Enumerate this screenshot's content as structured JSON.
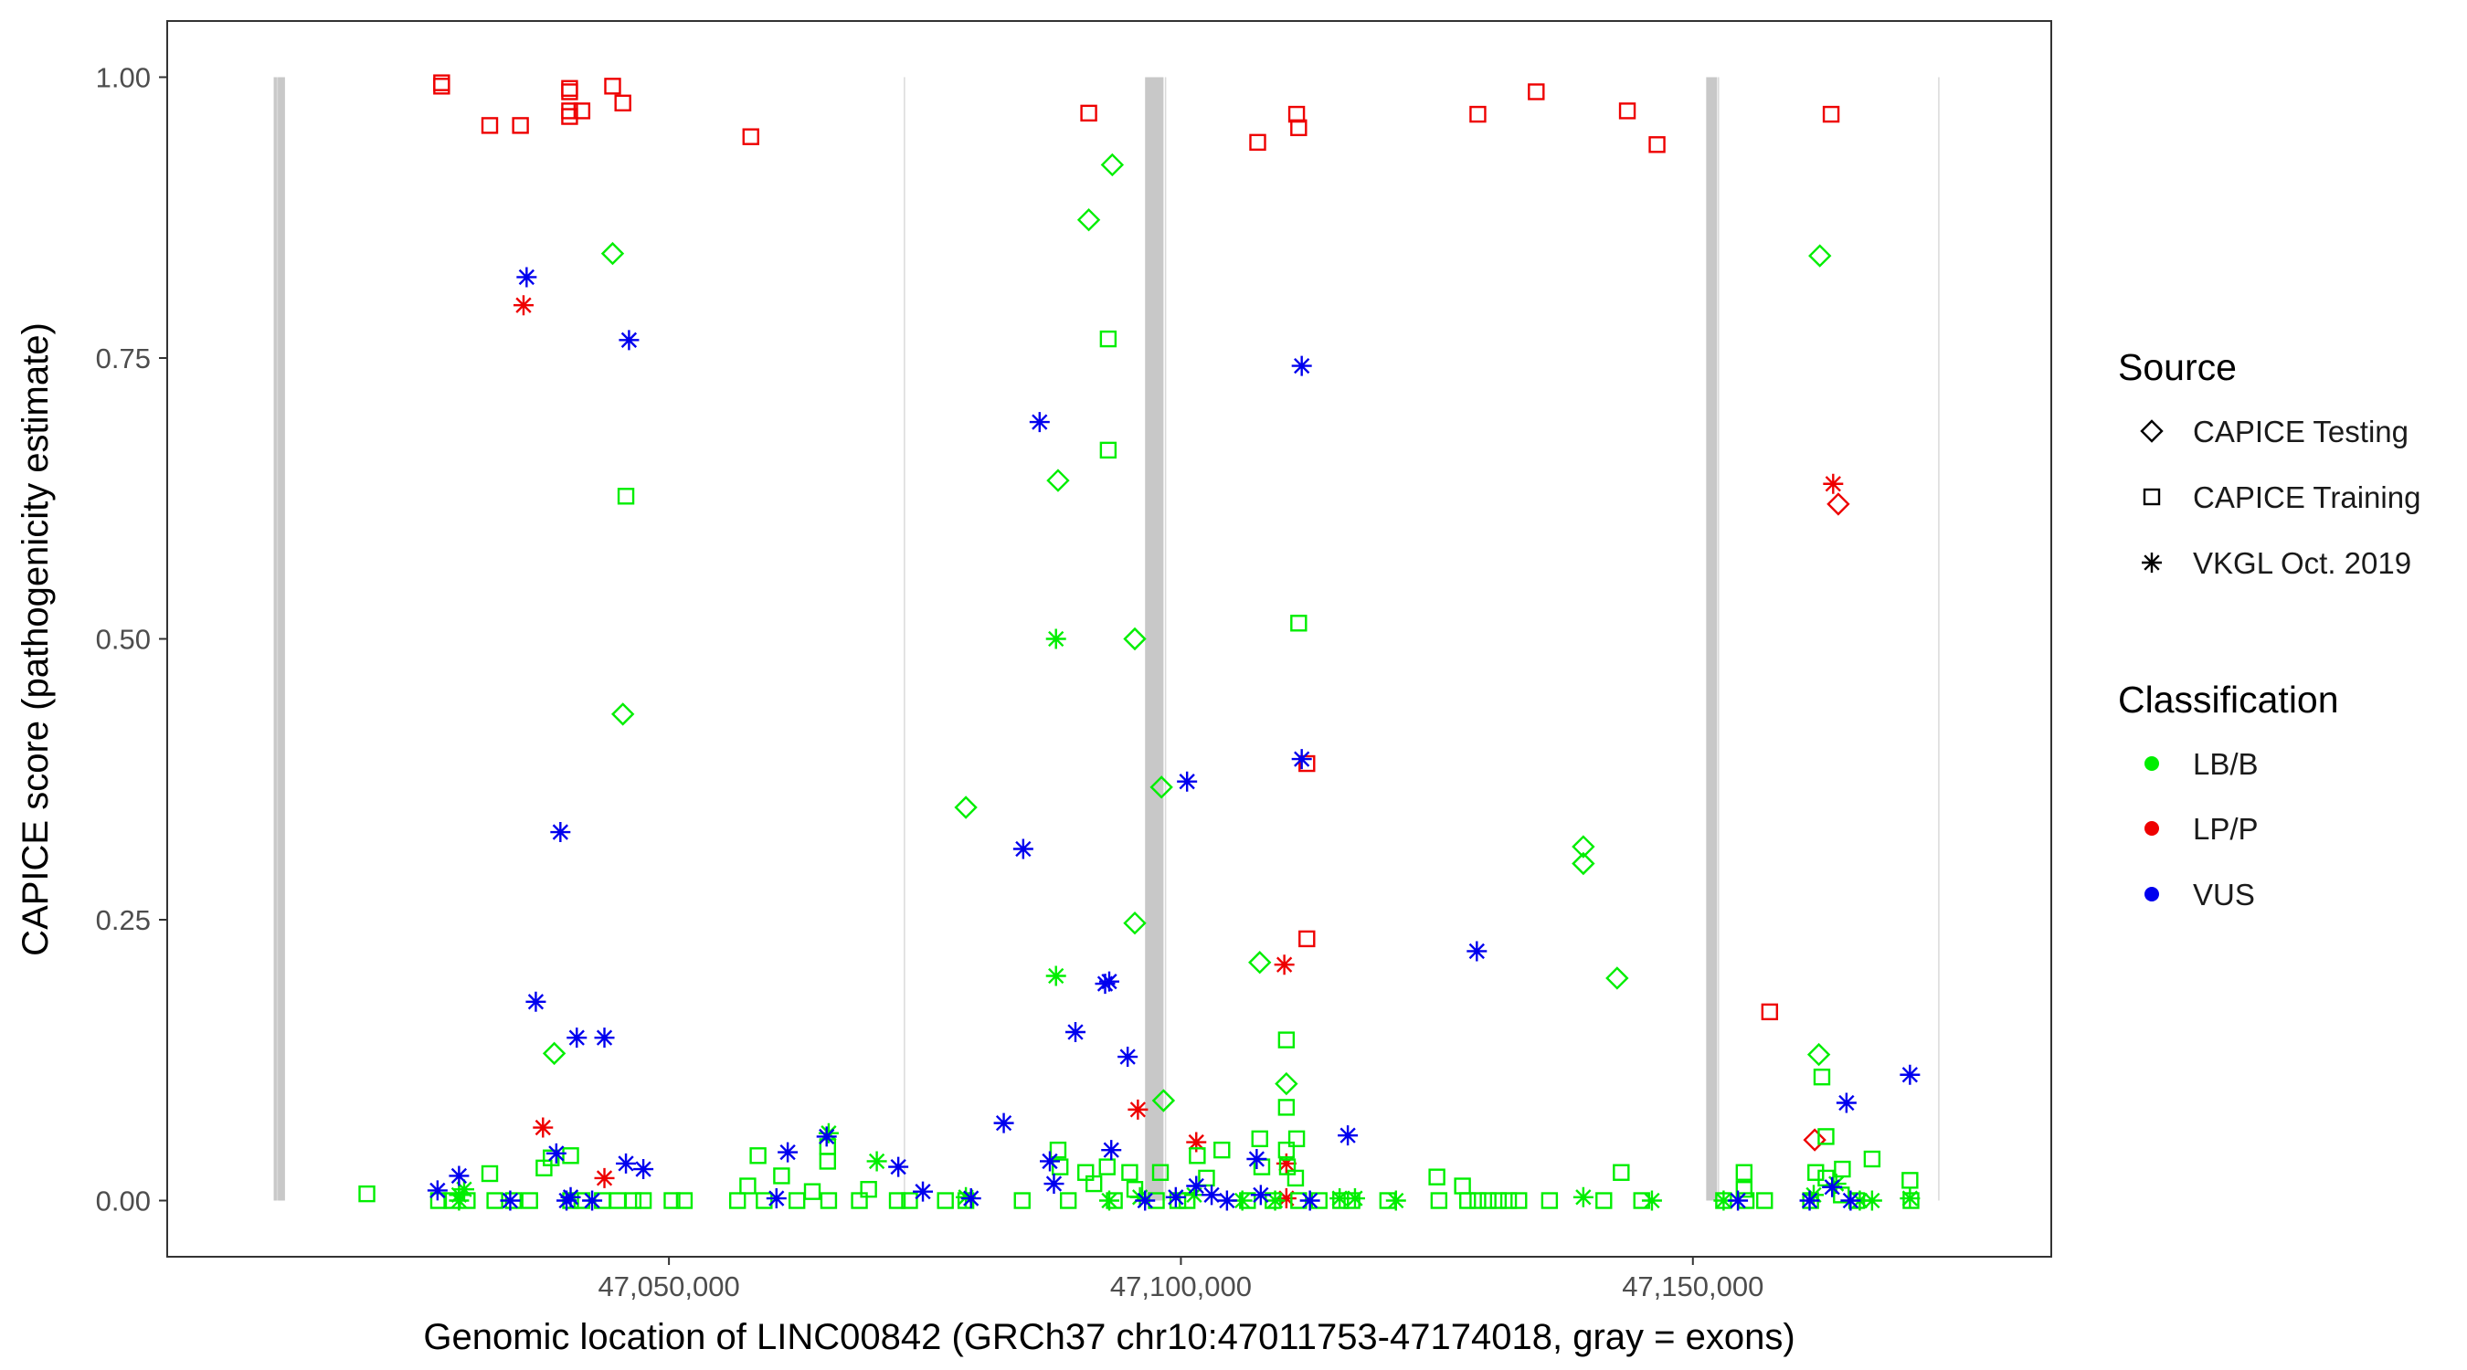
{
  "chart_data": {
    "type": "scatter",
    "title": "",
    "xlabel": "Genomic location of LINC00842 (GRCh37 chr10:47011753-47174018, gray = exons)",
    "ylabel": "CAPICE score (pathogenicity estimate)",
    "xlim": [
      47001000,
      47185000
    ],
    "ylim": [
      -0.05,
      1.05
    ],
    "xticks": [
      47050000,
      47100000,
      47150000
    ],
    "xtick_labels": [
      "47,050,000",
      "47,100,000",
      "47,150,000"
    ],
    "yticks": [
      0,
      0.25,
      0.5,
      0.75,
      1.0
    ],
    "ytick_labels": [
      "0.00",
      "0.25",
      "0.50",
      "0.75",
      "1.00"
    ],
    "vlines": [
      47011753,
      47073000,
      47098500,
      47152500,
      47174018
    ],
    "exons": [
      {
        "start": 47011400,
        "end": 47012500
      },
      {
        "start": 47096500,
        "end": 47098300
      },
      {
        "start": 47151300,
        "end": 47152300
      }
    ],
    "legend": {
      "source_title": "Source",
      "source_entries": [
        {
          "label": "CAPICE Testing",
          "shape": "diamond"
        },
        {
          "label": "CAPICE Training",
          "shape": "square"
        },
        {
          "label": "VKGL Oct. 2019",
          "shape": "asterisk"
        }
      ],
      "class_title": "Classification",
      "class_entries": [
        {
          "label": "LB/B",
          "color": "#00ee00"
        },
        {
          "label": "LP/P",
          "color": "#ee0000"
        },
        {
          "label": "VUS",
          "color": "#0000ee"
        }
      ]
    },
    "series": [
      {
        "name": "LP/P CAPICE Training",
        "shape": "square",
        "color": "#ee0000",
        "points": [
          [
            47027800,
            0.995
          ],
          [
            47027800,
            0.992
          ],
          [
            47032500,
            0.957
          ],
          [
            47035500,
            0.957
          ],
          [
            47040300,
            0.99
          ],
          [
            47040300,
            0.987
          ],
          [
            47040300,
            0.97
          ],
          [
            47040300,
            0.965
          ],
          [
            47041500,
            0.97
          ],
          [
            47044500,
            0.992
          ],
          [
            47045500,
            0.977
          ],
          [
            47058000,
            0.947
          ],
          [
            47091000,
            0.968
          ],
          [
            47107500,
            0.942
          ],
          [
            47111300,
            0.967
          ],
          [
            47111500,
            0.955
          ],
          [
            47129000,
            0.967
          ],
          [
            47134700,
            0.987
          ],
          [
            47143600,
            0.97
          ],
          [
            47146500,
            0.94
          ],
          [
            47163500,
            0.967
          ],
          [
            47112300,
            0.233
          ],
          [
            47112300,
            0.389
          ],
          [
            47157500,
            0.168
          ]
        ]
      },
      {
        "name": "LP/P CAPICE Testing",
        "shape": "diamond",
        "color": "#ee0000",
        "points": [
          [
            47164200,
            0.62
          ],
          [
            47161900,
            0.054
          ]
        ]
      },
      {
        "name": "LP/P VKGL",
        "shape": "asterisk",
        "color": "#ee0000",
        "points": [
          [
            47035800,
            0.797
          ],
          [
            47037700,
            0.065
          ],
          [
            47043700,
            0.02
          ],
          [
            47095800,
            0.081
          ],
          [
            47110100,
            0.21
          ],
          [
            47101500,
            0.052
          ],
          [
            47110300,
            0.033
          ],
          [
            47110300,
            0.002
          ],
          [
            47163700,
            0.638
          ]
        ]
      },
      {
        "name": "LB/B CAPICE Testing",
        "shape": "diamond",
        "color": "#00ee00",
        "points": [
          [
            47044500,
            0.843
          ],
          [
            47045500,
            0.433
          ],
          [
            47038800,
            0.131
          ],
          [
            47093300,
            0.922
          ],
          [
            47091000,
            0.873
          ],
          [
            47088000,
            0.641
          ],
          [
            47095500,
            0.5
          ],
          [
            47079000,
            0.35
          ],
          [
            47098100,
            0.368
          ],
          [
            47095500,
            0.247
          ],
          [
            47098300,
            0.089
          ],
          [
            47107700,
            0.212
          ],
          [
            47110300,
            0.104
          ],
          [
            47139300,
            0.315
          ],
          [
            47139300,
            0.3
          ],
          [
            47142600,
            0.198
          ],
          [
            47162400,
            0.841
          ],
          [
            47162300,
            0.13
          ]
        ]
      },
      {
        "name": "LB/B CAPICE Training",
        "shape": "square",
        "color": "#00ee00",
        "points": [
          [
            47045800,
            0.627
          ],
          [
            47092900,
            0.767
          ],
          [
            47092900,
            0.668
          ],
          [
            47111500,
            0.514
          ],
          [
            47110300,
            0.143
          ],
          [
            47110300,
            0.083
          ],
          [
            47162600,
            0.11
          ],
          [
            47163000,
            0.057
          ],
          [
            47020500,
            0.006
          ],
          [
            47027500,
            0.0
          ],
          [
            47028800,
            0.0
          ],
          [
            47030300,
            0.0
          ],
          [
            47032500,
            0.024
          ],
          [
            47033000,
            0.0
          ],
          [
            47034800,
            0.0
          ],
          [
            47036400,
            0.0
          ],
          [
            47037800,
            0.029
          ],
          [
            47038500,
            0.038
          ],
          [
            47040400,
            0.04
          ],
          [
            47040400,
            0.0
          ],
          [
            47041500,
            0.0
          ],
          [
            47043500,
            0.0
          ],
          [
            47045000,
            0.0
          ],
          [
            47046500,
            0.0
          ],
          [
            47047500,
            0.0
          ],
          [
            47050300,
            0.0
          ],
          [
            47051500,
            0.0
          ],
          [
            47056700,
            0.0
          ],
          [
            47057700,
            0.013
          ],
          [
            47058700,
            0.04
          ],
          [
            47059300,
            0.0
          ],
          [
            47061000,
            0.022
          ],
          [
            47062500,
            0.0
          ],
          [
            47064000,
            0.008
          ],
          [
            47065500,
            0.048
          ],
          [
            47065500,
            0.035
          ],
          [
            47065600,
            0.0
          ],
          [
            47068600,
            0.0
          ],
          [
            47069500,
            0.01
          ],
          [
            47072300,
            0.0
          ],
          [
            47073500,
            0.0
          ],
          [
            47077000,
            0.0
          ],
          [
            47079000,
            0.0
          ],
          [
            47084500,
            0.0
          ],
          [
            47088000,
            0.045
          ],
          [
            47088200,
            0.03
          ],
          [
            47089000,
            0.0
          ],
          [
            47090700,
            0.025
          ],
          [
            47091500,
            0.015
          ],
          [
            47092800,
            0.03
          ],
          [
            47093500,
            0.0
          ],
          [
            47095000,
            0.025
          ],
          [
            47095500,
            0.01
          ],
          [
            47097600,
            0.0
          ],
          [
            47098000,
            0.025
          ],
          [
            47099700,
            0.0
          ],
          [
            47100600,
            0.0
          ],
          [
            47101600,
            0.04
          ],
          [
            47102500,
            0.02
          ],
          [
            47104000,
            0.045
          ],
          [
            47106500,
            0.0
          ],
          [
            47107700,
            0.055
          ],
          [
            47107900,
            0.03
          ],
          [
            47109000,
            0.0
          ],
          [
            47110300,
            0.045
          ],
          [
            47110400,
            0.03
          ],
          [
            47111200,
            0.02
          ],
          [
            47111300,
            0.055
          ],
          [
            47111500,
            0.0
          ],
          [
            47113500,
            0.0
          ],
          [
            47115600,
            0.0
          ],
          [
            47116700,
            0.0
          ],
          [
            47120200,
            0.0
          ],
          [
            47125000,
            0.021
          ],
          [
            47125200,
            0.0
          ],
          [
            47127500,
            0.013
          ],
          [
            47128000,
            0.0
          ],
          [
            47129000,
            0.0
          ],
          [
            47130000,
            0.0
          ],
          [
            47131000,
            0.0
          ],
          [
            47132000,
            0.0
          ],
          [
            47133000,
            0.0
          ],
          [
            47136000,
            0.0
          ],
          [
            47141300,
            0.0
          ],
          [
            47143000,
            0.025
          ],
          [
            47145000,
            0.0
          ],
          [
            47153000,
            0.0
          ],
          [
            47155000,
            0.025
          ],
          [
            47155000,
            0.01
          ],
          [
            47155200,
            0.0
          ],
          [
            47157000,
            0.0
          ],
          [
            47161500,
            0.0
          ],
          [
            47162000,
            0.025
          ],
          [
            47163000,
            0.02
          ],
          [
            47164500,
            0.005
          ],
          [
            47164600,
            0.028
          ],
          [
            47166000,
            0.0
          ],
          [
            47167500,
            0.037
          ],
          [
            47171200,
            0.018
          ],
          [
            47171300,
            0.0
          ]
        ]
      },
      {
        "name": "LB/B VKGL",
        "shape": "asterisk",
        "color": "#00ee00",
        "points": [
          [
            47087800,
            0.5
          ],
          [
            47087800,
            0.2
          ],
          [
            47065600,
            0.06
          ],
          [
            47070300,
            0.035
          ],
          [
            47029500,
            0.005
          ],
          [
            47029500,
            0.0
          ],
          [
            47030000,
            0.01
          ],
          [
            47079000,
            0.003
          ],
          [
            47093000,
            0.0
          ],
          [
            47096000,
            0.003
          ],
          [
            47101300,
            0.005
          ],
          [
            47106000,
            0.0
          ],
          [
            47109200,
            0.0
          ],
          [
            47115500,
            0.002
          ],
          [
            47117000,
            0.002
          ],
          [
            47121000,
            0.0
          ],
          [
            47139300,
            0.003
          ],
          [
            47146000,
            0.0
          ],
          [
            47153000,
            0.0
          ],
          [
            47161800,
            0.005
          ],
          [
            47164000,
            0.015
          ],
          [
            47166300,
            0.0
          ],
          [
            47167500,
            0.0
          ],
          [
            47171200,
            0.002
          ]
        ]
      },
      {
        "name": "VUS VKGL",
        "shape": "asterisk",
        "color": "#0000ee",
        "points": [
          [
            47036100,
            0.822
          ],
          [
            47046100,
            0.766
          ],
          [
            47039400,
            0.328
          ],
          [
            47037000,
            0.177
          ],
          [
            47041000,
            0.145
          ],
          [
            47043700,
            0.145
          ],
          [
            47039000,
            0.042
          ],
          [
            47027400,
            0.009
          ],
          [
            47029500,
            0.022
          ],
          [
            47034500,
            0.0
          ],
          [
            47040000,
            0.0
          ],
          [
            47040400,
            0.003
          ],
          [
            47042500,
            0.0
          ],
          [
            47045800,
            0.033
          ],
          [
            47047500,
            0.028
          ],
          [
            47060500,
            0.002
          ],
          [
            47061600,
            0.043
          ],
          [
            47065400,
            0.057
          ],
          [
            47072400,
            0.03
          ],
          [
            47074800,
            0.008
          ],
          [
            47079500,
            0.002
          ],
          [
            47082700,
            0.069
          ],
          [
            47084600,
            0.313
          ],
          [
            47086200,
            0.693
          ],
          [
            47087200,
            0.035
          ],
          [
            47087600,
            0.015
          ],
          [
            47089700,
            0.15
          ],
          [
            47092600,
            0.193
          ],
          [
            47093000,
            0.195
          ],
          [
            47093200,
            0.045
          ],
          [
            47094800,
            0.128
          ],
          [
            47096500,
            0.0
          ],
          [
            47099500,
            0.003
          ],
          [
            47100600,
            0.373
          ],
          [
            47101500,
            0.013
          ],
          [
            47103000,
            0.005
          ],
          [
            47104500,
            0.0
          ],
          [
            47107400,
            0.037
          ],
          [
            47107800,
            0.005
          ],
          [
            47111800,
            0.743
          ],
          [
            47111800,
            0.393
          ],
          [
            47112600,
            0.0
          ],
          [
            47116300,
            0.058
          ],
          [
            47128900,
            0.222
          ],
          [
            47154400,
            0.0
          ],
          [
            47161400,
            0.0
          ],
          [
            47163600,
            0.012
          ],
          [
            47165000,
            0.087
          ],
          [
            47165400,
            0.0
          ],
          [
            47171200,
            0.112
          ]
        ]
      }
    ]
  }
}
